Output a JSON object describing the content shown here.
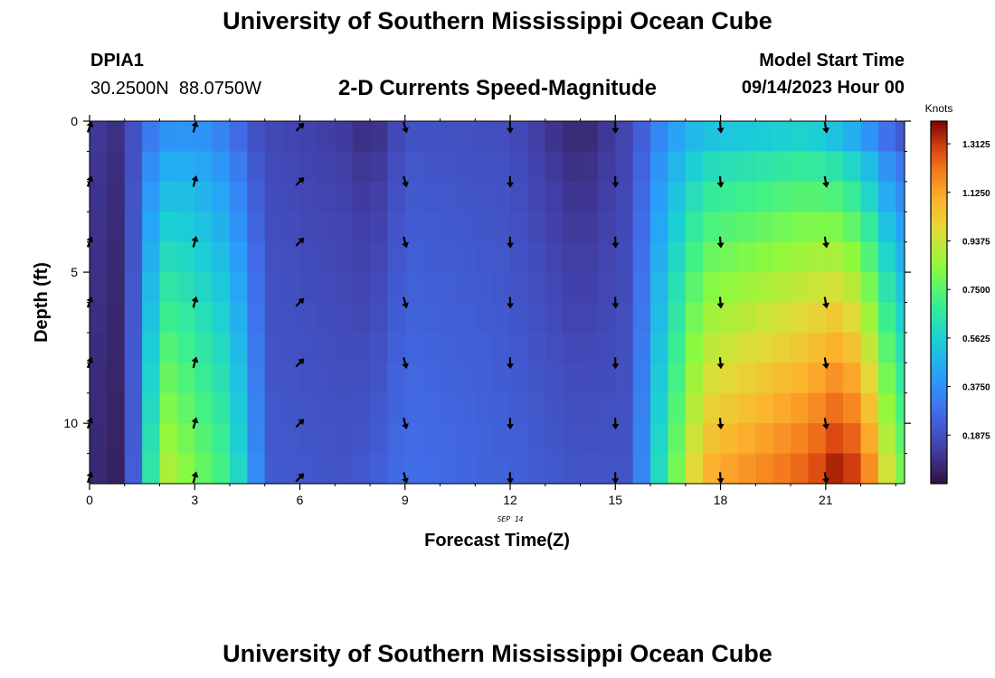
{
  "header": {
    "title": "University of Southern Mississippi Ocean Cube",
    "station_id": "DPIA1",
    "location": "30.2500N  88.0750W",
    "subtitle": "2-D Currents Speed-Magnitude",
    "model_start_label": "Model Start Time",
    "model_start_value": "09/14/2023 Hour 00"
  },
  "footer": {
    "title": "University of Southern Mississippi Ocean Cube"
  },
  "chart_data": {
    "type": "heatmap",
    "title": "2-D Currents Speed-Magnitude",
    "xlabel": "Forecast Time(Z)",
    "ylabel": "Depth (ft)",
    "date_label": "SEP 14",
    "xlim": [
      0,
      23.25
    ],
    "ylim": [
      0,
      12
    ],
    "x_ticks": [
      0,
      3,
      6,
      9,
      12,
      15,
      18,
      21
    ],
    "x_tick_labels": [
      "0",
      "3",
      "6",
      "9",
      "12",
      "15",
      "18",
      "21"
    ],
    "y_ticks": [
      0,
      5,
      10
    ],
    "y_tick_labels": [
      "0",
      "5",
      "10"
    ],
    "depth_levels_ft": [
      0.5,
      1.5,
      2.5,
      3.5,
      4.5,
      5.5,
      6.5,
      7.5,
      8.5,
      9.5,
      10.5,
      11.5
    ],
    "time_step_hours": 0.5,
    "colorbar": {
      "label": "Knots",
      "min": 0,
      "max": 1.4,
      "ticks": [
        0.1875,
        0.375,
        0.5625,
        0.75,
        0.9375,
        1.125,
        1.3125
      ],
      "tick_labels": [
        "0.1875",
        "0.3750",
        "0.5625",
        "0.7500",
        "0.9375",
        "1.1250",
        "1.3125"
      ]
    },
    "keyframes": [
      {
        "t": 0.0,
        "surface": 0.17,
        "bottom": 0.12
      },
      {
        "t": 0.5,
        "surface": 0.06,
        "bottom": 0.02
      },
      {
        "t": 1.0,
        "surface": 0.12,
        "bottom": 0.08
      },
      {
        "t": 1.5,
        "surface": 0.26,
        "bottom": 0.38
      },
      {
        "t": 2.0,
        "surface": 0.38,
        "bottom": 0.92
      },
      {
        "t": 3.0,
        "surface": 0.4,
        "bottom": 0.8
      },
      {
        "t": 4.0,
        "surface": 0.32,
        "bottom": 0.68
      },
      {
        "t": 4.5,
        "surface": 0.22,
        "bottom": 0.5
      },
      {
        "t": 5.0,
        "surface": 0.17,
        "bottom": 0.22
      },
      {
        "t": 7.5,
        "surface": 0.12,
        "bottom": 0.2
      },
      {
        "t": 8.0,
        "surface": 0.07,
        "bottom": 0.22
      },
      {
        "t": 9.0,
        "surface": 0.2,
        "bottom": 0.28
      },
      {
        "t": 12.0,
        "surface": 0.18,
        "bottom": 0.24
      },
      {
        "t": 14.0,
        "surface": 0.06,
        "bottom": 0.2
      },
      {
        "t": 15.5,
        "surface": 0.17,
        "bottom": 0.2
      },
      {
        "t": 16.0,
        "surface": 0.3,
        "bottom": 0.5
      },
      {
        "t": 16.5,
        "surface": 0.4,
        "bottom": 0.7
      },
      {
        "t": 17.5,
        "surface": 0.52,
        "bottom": 1.08
      },
      {
        "t": 20.5,
        "surface": 0.58,
        "bottom": 1.25
      },
      {
        "t": 21.5,
        "surface": 0.5,
        "bottom": 1.38
      },
      {
        "t": 22.5,
        "surface": 0.35,
        "bottom": 1.1
      },
      {
        "t": 23.0,
        "surface": 0.22,
        "bottom": 0.8
      }
    ],
    "cell_overrides": [
      {
        "t": 0.5,
        "depth": 11.5,
        "speed": 0.0
      }
    ],
    "arrows": [
      {
        "hour": 0,
        "direction_deg": 20
      },
      {
        "hour": 3,
        "direction_deg": 15
      },
      {
        "hour": 6,
        "direction_deg": 45
      },
      {
        "hour": 9,
        "direction_deg": 165
      },
      {
        "hour": 12,
        "direction_deg": 178
      },
      {
        "hour": 15,
        "direction_deg": 178
      },
      {
        "hour": 18,
        "direction_deg": 175
      },
      {
        "hour": 21,
        "direction_deg": 170
      }
    ],
    "arrow_depths_ft": [
      0.2,
      2,
      4,
      6,
      8,
      10,
      11.8
    ]
  }
}
